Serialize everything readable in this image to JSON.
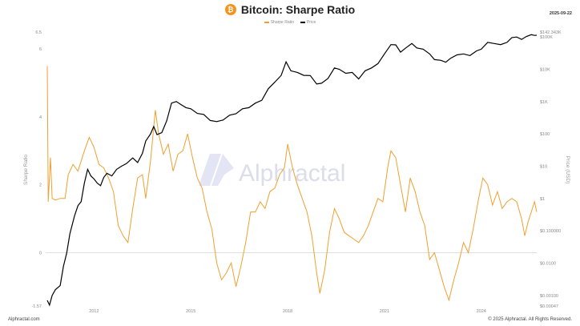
{
  "header": {
    "icon_glyph": "₿",
    "title": "Bitcoin: Sharpe Ratio",
    "date": "2025-09-22"
  },
  "footer": {
    "left": "Alphractal.com",
    "right": "© 2025 Alphractal. All Rights Reserved."
  },
  "watermark": {
    "text": "Alphractal"
  },
  "colors": {
    "sharpe": "#f0a030",
    "price": "#000000",
    "zero_line": "#cccccc"
  },
  "chart_data": {
    "type": "line",
    "title": "Bitcoin: Sharpe Ratio",
    "legend": [
      "Sharpe Ratio",
      "Price"
    ],
    "legend_position": "top-center",
    "grid": false,
    "x_ticks": [
      "2012",
      "2015",
      "2018",
      "2021",
      "2024"
    ],
    "x_range": [
      2010.5,
      2025.72
    ],
    "left_axis": {
      "label": "Sharpe Ratio",
      "range": [
        -1.57,
        6.5
      ],
      "ticks": [
        {
          "v": 6.5,
          "label": "6.5"
        },
        {
          "v": 6,
          "label": "6"
        },
        {
          "v": 4,
          "label": "4"
        },
        {
          "v": 2,
          "label": "2"
        },
        {
          "v": 0,
          "label": "0"
        },
        {
          "v": -1.57,
          "label": "-1.57"
        }
      ]
    },
    "right_axis": {
      "label": "Price (USD)",
      "scale": "log",
      "range": [
        0.00047,
        142343
      ],
      "ticks": [
        {
          "v": 142343,
          "label": "$142.343K"
        },
        {
          "v": 100000,
          "label": "$100K"
        },
        {
          "v": 10000,
          "label": "$10K"
        },
        {
          "v": 1000,
          "label": "$1K"
        },
        {
          "v": 100,
          "label": "$100"
        },
        {
          "v": 10,
          "label": "$10"
        },
        {
          "v": 1,
          "label": "$1"
        },
        {
          "v": 0.1,
          "label": "$0.100000"
        },
        {
          "v": 0.01,
          "label": "$0.0100"
        },
        {
          "v": 0.001,
          "label": "$0.00100"
        },
        {
          "v": 0.00047,
          "label": "$0.00047"
        }
      ]
    },
    "series": [
      {
        "name": "Sharpe Ratio",
        "axis": "left",
        "points": [
          [
            2010.55,
            5.5
          ],
          [
            2010.58,
            1.5
          ],
          [
            2010.65,
            2.8
          ],
          [
            2010.7,
            1.6
          ],
          [
            2010.8,
            1.55
          ],
          [
            2010.95,
            1.6
          ],
          [
            2011.1,
            1.6
          ],
          [
            2011.2,
            2.3
          ],
          [
            2011.35,
            2.6
          ],
          [
            2011.5,
            2.4
          ],
          [
            2011.7,
            3.0
          ],
          [
            2011.85,
            3.4
          ],
          [
            2012.0,
            3.1
          ],
          [
            2012.15,
            2.6
          ],
          [
            2012.3,
            2.5
          ],
          [
            2012.45,
            2.2
          ],
          [
            2012.6,
            1.8
          ],
          [
            2012.75,
            0.8
          ],
          [
            2012.9,
            0.5
          ],
          [
            2013.05,
            0.3
          ],
          [
            2013.2,
            1.3
          ],
          [
            2013.35,
            2.2
          ],
          [
            2013.5,
            2.3
          ],
          [
            2013.6,
            1.6
          ],
          [
            2013.75,
            2.7
          ],
          [
            2013.9,
            4.2
          ],
          [
            2014.0,
            3.5
          ],
          [
            2014.15,
            2.9
          ],
          [
            2014.3,
            3.2
          ],
          [
            2014.45,
            2.4
          ],
          [
            2014.6,
            2.9
          ],
          [
            2014.75,
            3.0
          ],
          [
            2014.9,
            3.5
          ],
          [
            2015.05,
            2.8
          ],
          [
            2015.2,
            2.2
          ],
          [
            2015.35,
            1.9
          ],
          [
            2015.5,
            1.2
          ],
          [
            2015.65,
            0.7
          ],
          [
            2015.8,
            -0.3
          ],
          [
            2015.95,
            -0.8
          ],
          [
            2016.1,
            -0.6
          ],
          [
            2016.25,
            -0.3
          ],
          [
            2016.4,
            -1.0
          ],
          [
            2016.55,
            -0.4
          ],
          [
            2016.7,
            0.3
          ],
          [
            2016.85,
            1.2
          ],
          [
            2017.0,
            1.2
          ],
          [
            2017.15,
            1.5
          ],
          [
            2017.3,
            1.3
          ],
          [
            2017.45,
            1.8
          ],
          [
            2017.6,
            1.9
          ],
          [
            2017.75,
            2.3
          ],
          [
            2017.9,
            2.5
          ],
          [
            2018.0,
            3.2
          ],
          [
            2018.15,
            2.5
          ],
          [
            2018.3,
            2.0
          ],
          [
            2018.45,
            1.6
          ],
          [
            2018.6,
            1.2
          ],
          [
            2018.75,
            0.5
          ],
          [
            2018.9,
            -0.6
          ],
          [
            2019.0,
            -1.2
          ],
          [
            2019.15,
            -0.5
          ],
          [
            2019.3,
            0.6
          ],
          [
            2019.45,
            1.3
          ],
          [
            2019.6,
            1.0
          ],
          [
            2019.75,
            0.6
          ],
          [
            2019.9,
            0.5
          ],
          [
            2020.05,
            0.4
          ],
          [
            2020.2,
            0.3
          ],
          [
            2020.35,
            0.5
          ],
          [
            2020.5,
            0.8
          ],
          [
            2020.65,
            1.2
          ],
          [
            2020.8,
            1.6
          ],
          [
            2020.95,
            1.5
          ],
          [
            2021.1,
            2.5
          ],
          [
            2021.2,
            3.0
          ],
          [
            2021.35,
            2.8
          ],
          [
            2021.5,
            2.0
          ],
          [
            2021.65,
            1.2
          ],
          [
            2021.8,
            2.2
          ],
          [
            2021.95,
            1.8
          ],
          [
            2022.1,
            1.2
          ],
          [
            2022.25,
            0.8
          ],
          [
            2022.4,
            -0.2
          ],
          [
            2022.55,
            0.0
          ],
          [
            2022.7,
            -0.5
          ],
          [
            2022.85,
            -1.0
          ],
          [
            2023.0,
            -1.4
          ],
          [
            2023.15,
            -0.8
          ],
          [
            2023.3,
            -0.3
          ],
          [
            2023.45,
            0.3
          ],
          [
            2023.6,
            0.0
          ],
          [
            2023.75,
            0.7
          ],
          [
            2023.9,
            1.5
          ],
          [
            2024.05,
            2.2
          ],
          [
            2024.2,
            2.0
          ],
          [
            2024.35,
            1.4
          ],
          [
            2024.5,
            1.8
          ],
          [
            2024.65,
            1.3
          ],
          [
            2024.8,
            1.5
          ],
          [
            2024.95,
            1.6
          ],
          [
            2025.1,
            1.5
          ],
          [
            2025.25,
            1.0
          ],
          [
            2025.35,
            0.5
          ],
          [
            2025.45,
            0.9
          ],
          [
            2025.55,
            1.2
          ],
          [
            2025.65,
            1.5
          ],
          [
            2025.72,
            1.2
          ]
        ]
      },
      {
        "name": "Price",
        "axis": "right",
        "points": [
          [
            2010.55,
            0.0007
          ],
          [
            2010.62,
            0.0005
          ],
          [
            2010.7,
            0.001
          ],
          [
            2010.8,
            0.0015
          ],
          [
            2010.95,
            0.002
          ],
          [
            2011.05,
            0.008
          ],
          [
            2011.15,
            0.02
          ],
          [
            2011.25,
            0.08
          ],
          [
            2011.4,
            0.3
          ],
          [
            2011.5,
            0.6
          ],
          [
            2011.6,
            0.8
          ],
          [
            2011.7,
            3.0
          ],
          [
            2011.8,
            8.0
          ],
          [
            2011.9,
            5.0
          ],
          [
            2012.0,
            4.0
          ],
          [
            2012.1,
            3.0
          ],
          [
            2012.2,
            2.5
          ],
          [
            2012.3,
            4.5
          ],
          [
            2012.4,
            6.0
          ],
          [
            2012.55,
            5.0
          ],
          [
            2012.7,
            8.0
          ],
          [
            2012.85,
            10.0
          ],
          [
            2013.0,
            12.0
          ],
          [
            2013.2,
            18.0
          ],
          [
            2013.35,
            13.0
          ],
          [
            2013.5,
            25.0
          ],
          [
            2013.6,
            60.0
          ],
          [
            2013.75,
            100.0
          ],
          [
            2013.85,
            170.0
          ],
          [
            2013.95,
            95.0
          ],
          [
            2014.1,
            110.0
          ],
          [
            2014.25,
            250.0
          ],
          [
            2014.4,
            900.0
          ],
          [
            2014.55,
            1000.0
          ],
          [
            2014.7,
            800.0
          ],
          [
            2014.85,
            650.0
          ],
          [
            2015.0,
            600.0
          ],
          [
            2015.2,
            430.0
          ],
          [
            2015.4,
            400.0
          ],
          [
            2015.6,
            260.0
          ],
          [
            2015.8,
            240.0
          ],
          [
            2016.0,
            270.0
          ],
          [
            2016.2,
            380.0
          ],
          [
            2016.4,
            420.0
          ],
          [
            2016.6,
            600.0
          ],
          [
            2016.8,
            650.0
          ],
          [
            2017.0,
            900.0
          ],
          [
            2017.2,
            1100.0
          ],
          [
            2017.4,
            2500.0
          ],
          [
            2017.6,
            4000.0
          ],
          [
            2017.8,
            6500.0
          ],
          [
            2017.95,
            17000.0
          ],
          [
            2018.1,
            9000.0
          ],
          [
            2018.3,
            8000.0
          ],
          [
            2018.5,
            6500.0
          ],
          [
            2018.7,
            6400.0
          ],
          [
            2018.9,
            3500.0
          ],
          [
            2019.05,
            3700.0
          ],
          [
            2019.25,
            5200.0
          ],
          [
            2019.45,
            11000.0
          ],
          [
            2019.6,
            10000.0
          ],
          [
            2019.8,
            7500.0
          ],
          [
            2020.0,
            8000.0
          ],
          [
            2020.2,
            5000.0
          ],
          [
            2020.4,
            9000.0
          ],
          [
            2020.6,
            11000.0
          ],
          [
            2020.8,
            15000.0
          ],
          [
            2021.0,
            30000.0
          ],
          [
            2021.2,
            58000.0
          ],
          [
            2021.35,
            57000.0
          ],
          [
            2021.5,
            34000.0
          ],
          [
            2021.65,
            45000.0
          ],
          [
            2021.85,
            63000.0
          ],
          [
            2022.0,
            46000.0
          ],
          [
            2022.2,
            42000.0
          ],
          [
            2022.4,
            30000.0
          ],
          [
            2022.55,
            20000.0
          ],
          [
            2022.75,
            19000.0
          ],
          [
            2022.9,
            16500.0
          ],
          [
            2023.05,
            22000.0
          ],
          [
            2023.25,
            28000.0
          ],
          [
            2023.45,
            30000.0
          ],
          [
            2023.65,
            26500.0
          ],
          [
            2023.85,
            37000.0
          ],
          [
            2024.0,
            42000.0
          ],
          [
            2024.2,
            68000.0
          ],
          [
            2024.4,
            63000.0
          ],
          [
            2024.6,
            58000.0
          ],
          [
            2024.8,
            68000.0
          ],
          [
            2024.95,
            96000.0
          ],
          [
            2025.1,
            100000.0
          ],
          [
            2025.25,
            84000.0
          ],
          [
            2025.4,
            104000.0
          ],
          [
            2025.55,
            118000.0
          ],
          [
            2025.65,
            112000.0
          ],
          [
            2025.72,
            113000.0
          ]
        ]
      }
    ]
  }
}
